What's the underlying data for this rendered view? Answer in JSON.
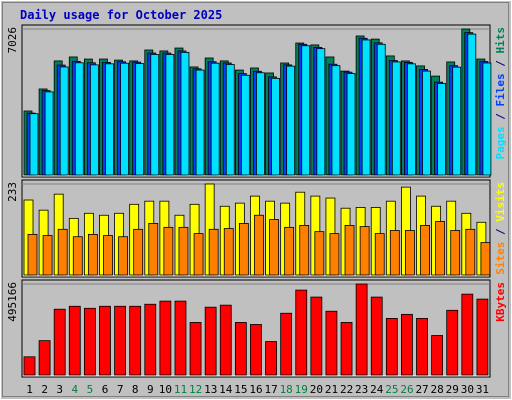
{
  "chart_data": [
    {
      "type": "bar",
      "title": "Daily usage for October 2025",
      "separator": "/",
      "ylim": [
        0,
        7026
      ],
      "yticks": [
        7026
      ],
      "series": [
        {
          "name": "Pages",
          "color": "#00e0ff",
          "values": [
            2950,
            4000,
            5200,
            5400,
            5300,
            5350,
            5380,
            5360,
            5800,
            5800,
            5900,
            5050,
            5380,
            5320,
            4800,
            4920,
            4650,
            5240,
            6220,
            6080,
            5260,
            4880,
            6500,
            6290,
            5440,
            5350,
            5000,
            4400,
            5190,
            6780,
            5390
          ]
        },
        {
          "name": "Files",
          "color": "#0040ff",
          "values": [
            2980,
            4060,
            5290,
            5470,
            5400,
            5420,
            5450,
            5430,
            5870,
            5870,
            5970,
            5110,
            5450,
            5390,
            4880,
            4990,
            4720,
            5300,
            6290,
            6140,
            5330,
            4950,
            6580,
            6360,
            5510,
            5420,
            5080,
            4470,
            5260,
            6850,
            5460
          ]
        },
        {
          "name": "Hits",
          "color": "#00805c",
          "values": [
            3080,
            4140,
            5490,
            5680,
            5580,
            5580,
            5530,
            5490,
            6015,
            5970,
            6110,
            5200,
            5630,
            5490,
            5050,
            5150,
            4910,
            5390,
            6350,
            6260,
            5680,
            5000,
            6690,
            6540,
            5730,
            5490,
            5250,
            4760,
            5440,
            7026,
            5580
          ]
        }
      ]
    },
    {
      "type": "bar",
      "separator": "/",
      "ylim": [
        0,
        233
      ],
      "yticks": [
        233
      ],
      "series": [
        {
          "name": "Sites",
          "color": "#ff8000",
          "values": [
            104,
            101,
            117,
            98,
            104,
            101,
            98,
            117,
            132,
            122,
            122,
            106,
            117,
            119,
            132,
            153,
            142,
            122,
            127,
            111,
            106,
            127,
            124,
            106,
            114,
            114,
            127,
            137,
            114,
            117,
            83
          ]
        },
        {
          "name": "Visits",
          "color": "#ffff00",
          "values": [
            192,
            166,
            207,
            145,
            158,
            153,
            158,
            181,
            189,
            189,
            153,
            181,
            233,
            176,
            184,
            202,
            189,
            184,
            212,
            202,
            197,
            171,
            173,
            173,
            189,
            225,
            202,
            176,
            189,
            158,
            135
          ]
        }
      ]
    },
    {
      "type": "bar",
      "ylim": [
        0,
        495166
      ],
      "yticks": [
        495166
      ],
      "categories": [
        "1",
        "2",
        "3",
        "4",
        "5",
        "6",
        "7",
        "8",
        "9",
        "10",
        "11",
        "12",
        "13",
        "14",
        "15",
        "16",
        "17",
        "18",
        "19",
        "20",
        "21",
        "22",
        "23",
        "24",
        "25",
        "26",
        "27",
        "28",
        "29",
        "30",
        "31"
      ],
      "highlight_indices": [
        3,
        4,
        10,
        11,
        17,
        18,
        24,
        25
      ],
      "highlight_color": "#008040",
      "series": [
        {
          "name": "KBytes",
          "color": "#ff0000",
          "values": [
            99000,
            187000,
            358000,
            374000,
            363000,
            374000,
            374000,
            374000,
            385000,
            402000,
            402000,
            286000,
            369000,
            380000,
            286000,
            275000,
            182000,
            336000,
            462000,
            424000,
            347000,
            286000,
            495166,
            424000,
            308000,
            330000,
            308000,
            215000,
            352000,
            440000,
            413000
          ]
        }
      ]
    }
  ]
}
